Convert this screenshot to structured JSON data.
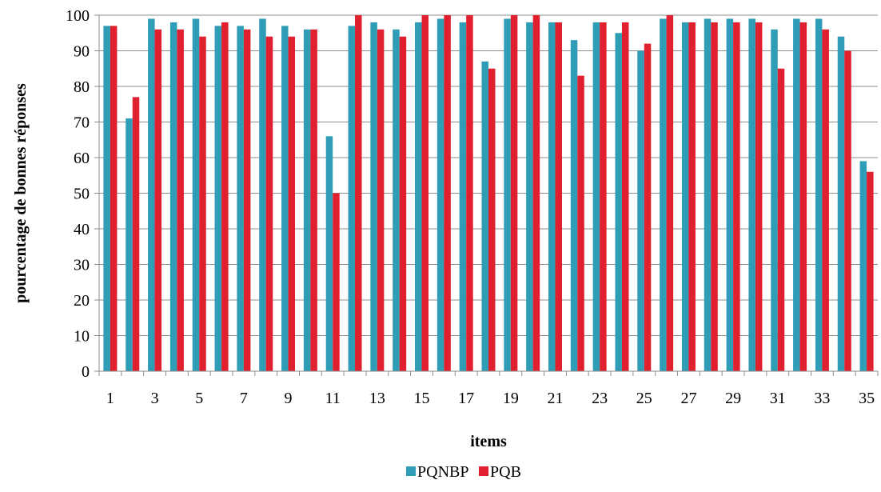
{
  "chart_data": {
    "type": "bar",
    "title": "",
    "xlabel": "items",
    "ylabel": "pourcentage de bonnes réponses",
    "ylim": [
      0,
      100
    ],
    "yticks": [
      0,
      10,
      20,
      30,
      40,
      50,
      60,
      70,
      80,
      90,
      100
    ],
    "grid": true,
    "legend_position": "bottom",
    "categories": [
      1,
      2,
      3,
      4,
      5,
      6,
      7,
      8,
      9,
      10,
      11,
      12,
      13,
      14,
      15,
      16,
      17,
      18,
      19,
      20,
      21,
      22,
      23,
      24,
      25,
      26,
      27,
      28,
      29,
      30,
      31,
      32,
      33,
      34,
      35
    ],
    "x_tick_labels_shown": [
      "1",
      "3",
      "5",
      "7",
      "9",
      "11",
      "13",
      "15",
      "17",
      "19",
      "21",
      "23",
      "25",
      "27",
      "29",
      "31",
      "33",
      "35"
    ],
    "series": [
      {
        "name": "PQNBP",
        "color": "#2E9DB5",
        "values": [
          97,
          71,
          99,
          98,
          99,
          97,
          97,
          99,
          97,
          96,
          66,
          97,
          98,
          96,
          98,
          99,
          98,
          87,
          99,
          98,
          98,
          93,
          98,
          95,
          90,
          99,
          98,
          99,
          99,
          99,
          96,
          99,
          99,
          94,
          59
        ]
      },
      {
        "name": "PQB",
        "color": "#E0202F",
        "values": [
          97,
          77,
          96,
          96,
          94,
          98,
          96,
          94,
          94,
          96,
          50,
          100,
          96,
          94,
          100,
          100,
          100,
          85,
          100,
          100,
          98,
          83,
          98,
          98,
          92,
          100,
          98,
          98,
          98,
          98,
          85,
          98,
          96,
          90,
          56
        ]
      }
    ]
  }
}
